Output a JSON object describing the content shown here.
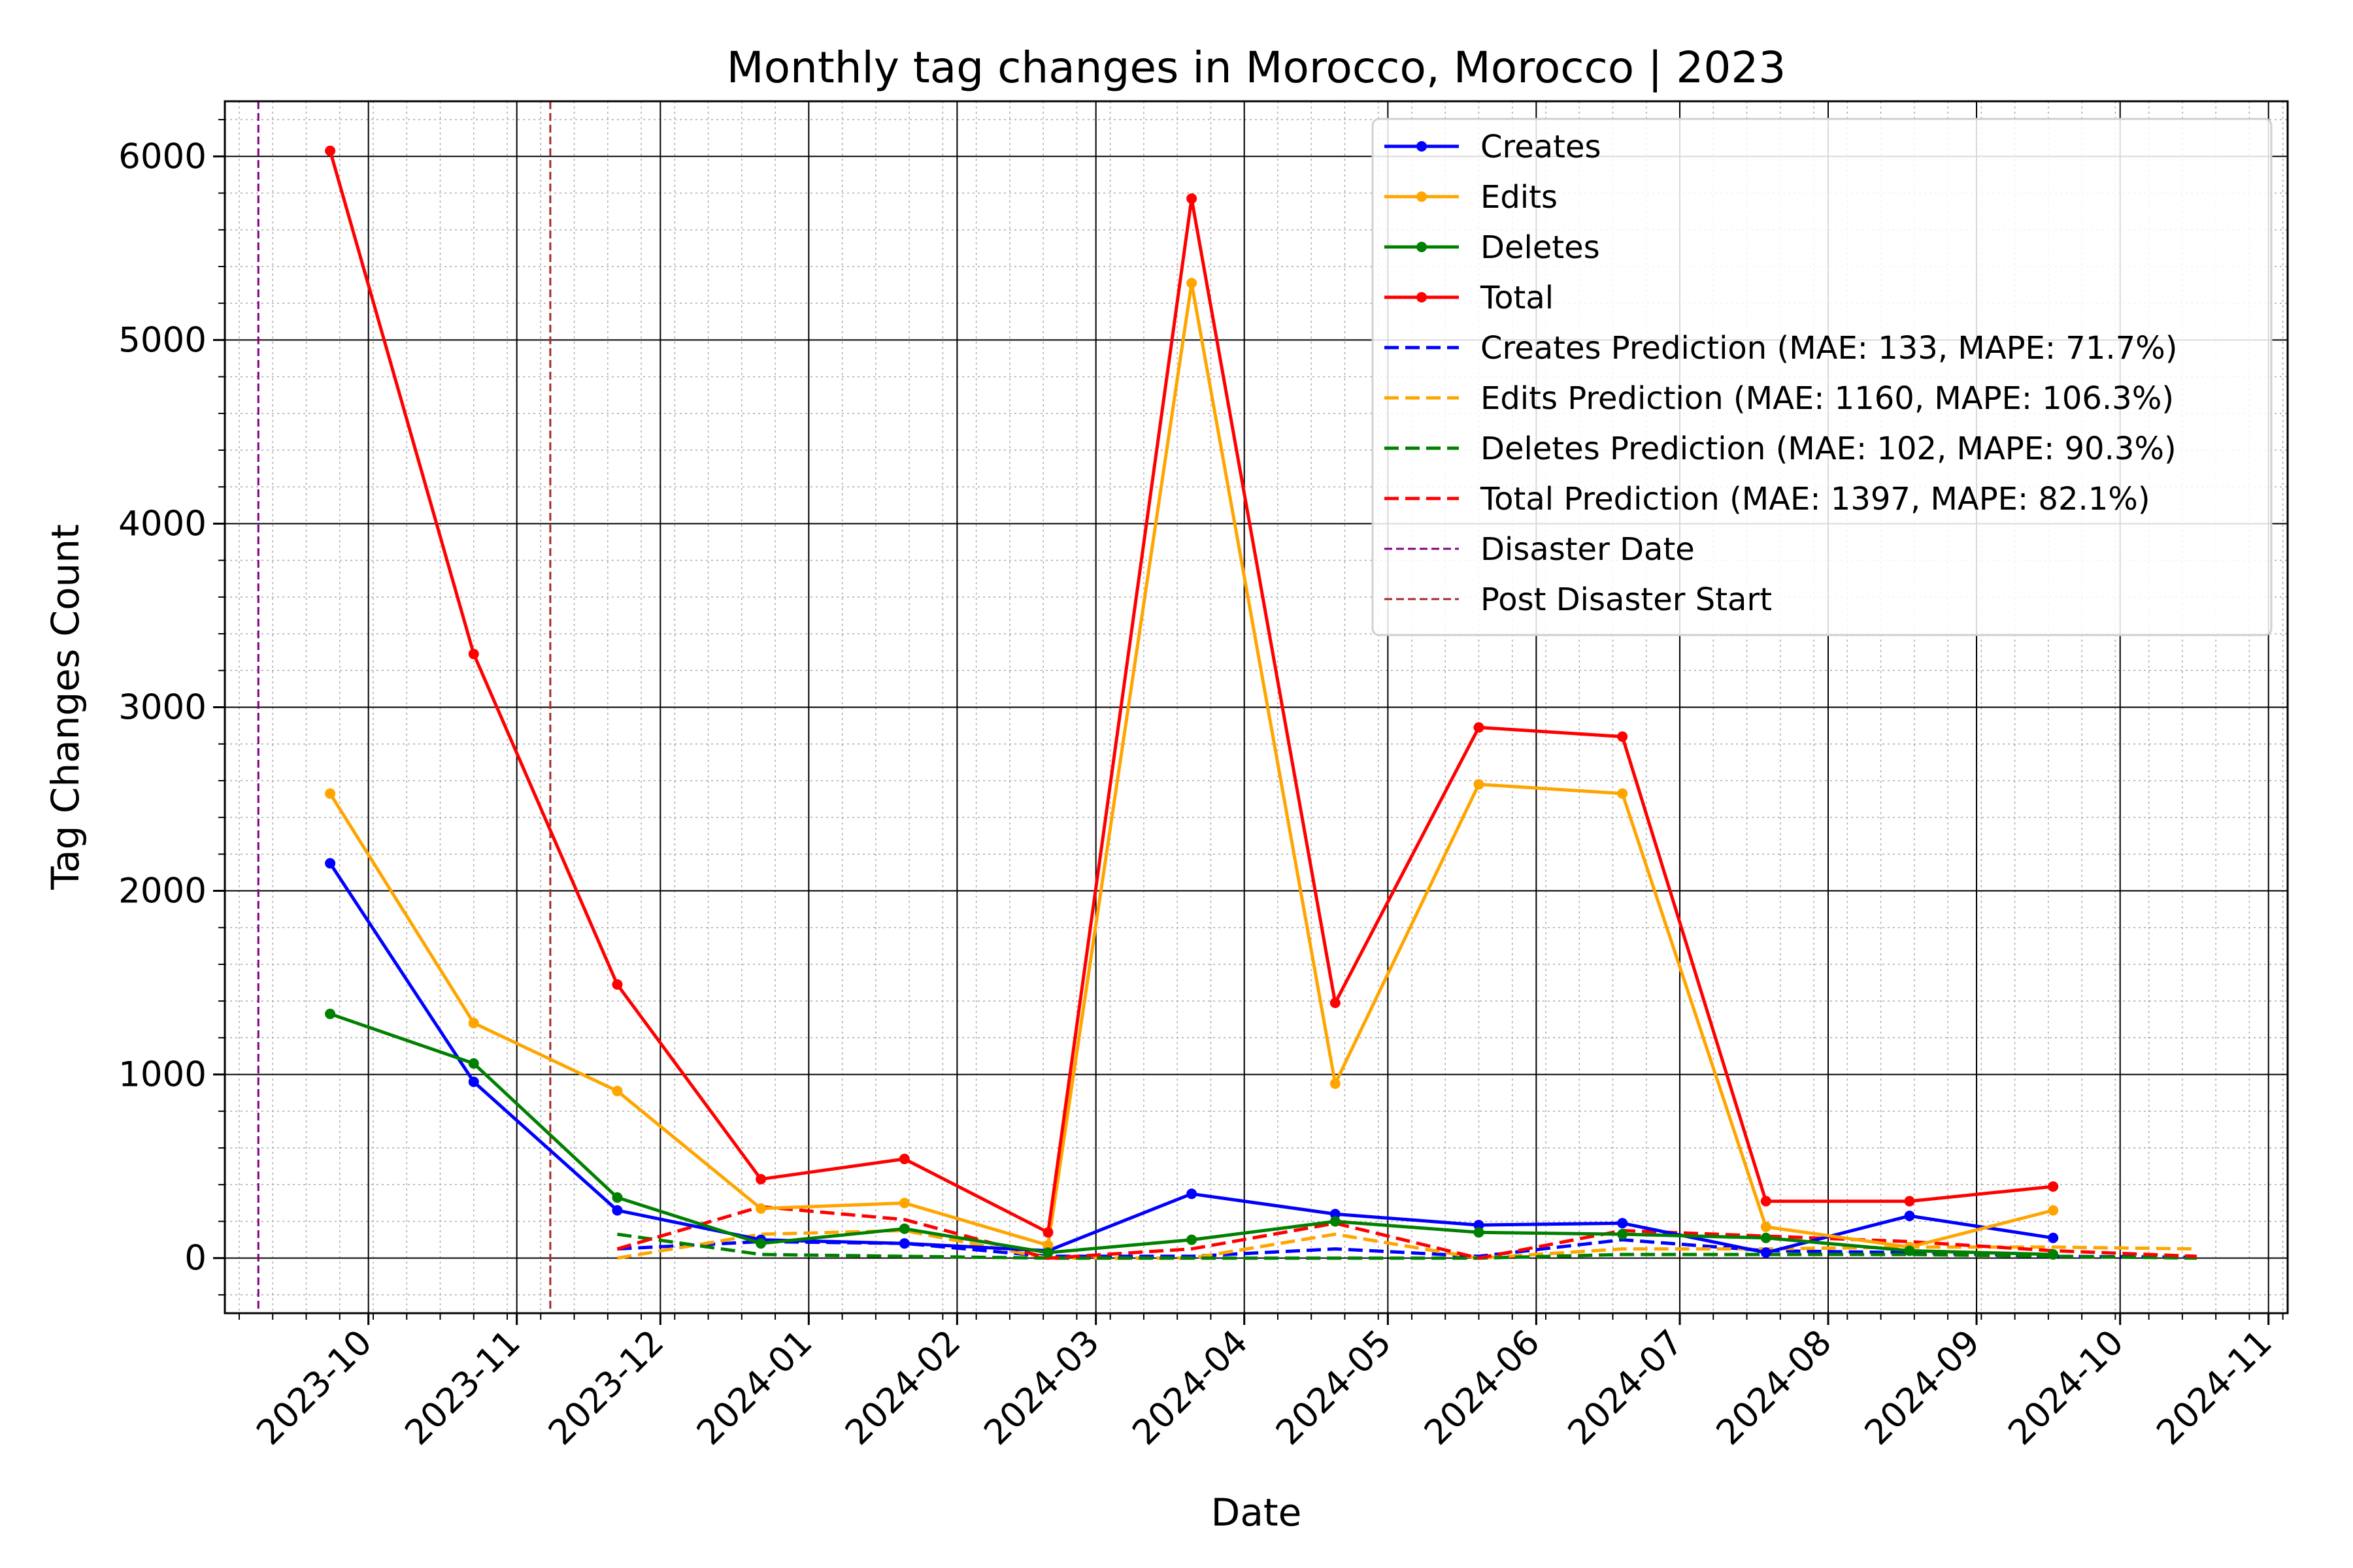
{
  "chart_data": {
    "type": "line",
    "title": "Monthly tag changes in Morocco, Morocco | 2023",
    "xlabel": "Date",
    "ylabel": "Tag Changes Count",
    "xlim": [
      "2023-09-01",
      "2024-11-05"
    ],
    "ylim": [
      -300,
      6300
    ],
    "yticks": [
      0,
      1000,
      2000,
      3000,
      4000,
      5000,
      6000
    ],
    "xticks": [
      "2023-10",
      "2023-11",
      "2023-12",
      "2024-01",
      "2024-02",
      "2024-03",
      "2024-04",
      "2024-05",
      "2024-06",
      "2024-07",
      "2024-08",
      "2024-09",
      "2024-10",
      "2024-11"
    ],
    "grid": true,
    "legend_position": "top-right",
    "series": [
      {
        "name": "Creates",
        "color": "#0000ff",
        "style": "solid-marker",
        "x": [
          "2023-09-23",
          "2023-10-23",
          "2023-11-22",
          "2023-12-22",
          "2024-01-21",
          "2024-02-20",
          "2024-03-21",
          "2024-04-20",
          "2024-05-20",
          "2024-06-19",
          "2024-07-19",
          "2024-08-18",
          "2024-09-17"
        ],
        "values": [
          2150,
          960,
          260,
          100,
          80,
          40,
          350,
          240,
          180,
          190,
          30,
          230,
          110
        ]
      },
      {
        "name": "Edits",
        "color": "#ffa500",
        "style": "solid-marker",
        "x": [
          "2023-09-23",
          "2023-10-23",
          "2023-11-22",
          "2023-12-22",
          "2024-01-21",
          "2024-02-20",
          "2024-03-21",
          "2024-04-20",
          "2024-05-20",
          "2024-06-19",
          "2024-07-19",
          "2024-08-18",
          "2024-09-17"
        ],
        "values": [
          2530,
          1280,
          910,
          270,
          300,
          70,
          5310,
          950,
          2580,
          2530,
          170,
          60,
          260
        ]
      },
      {
        "name": "Deletes",
        "color": "#008000",
        "style": "solid-marker",
        "x": [
          "2023-09-23",
          "2023-10-23",
          "2023-11-22",
          "2023-12-22",
          "2024-01-21",
          "2024-02-20",
          "2024-03-21",
          "2024-04-20",
          "2024-05-20",
          "2024-06-19",
          "2024-07-19",
          "2024-08-18",
          "2024-09-17"
        ],
        "values": [
          1330,
          1060,
          330,
          80,
          160,
          30,
          100,
          200,
          140,
          130,
          110,
          40,
          20
        ]
      },
      {
        "name": "Total",
        "color": "#ff0000",
        "style": "solid-marker",
        "x": [
          "2023-09-23",
          "2023-10-23",
          "2023-11-22",
          "2023-12-22",
          "2024-01-21",
          "2024-02-20",
          "2024-03-21",
          "2024-04-20",
          "2024-05-20",
          "2024-06-19",
          "2024-07-19",
          "2024-08-18",
          "2024-09-17"
        ],
        "values": [
          6030,
          3290,
          1490,
          430,
          540,
          140,
          5770,
          1390,
          2890,
          2840,
          310,
          310,
          390
        ]
      },
      {
        "name": "Creates Prediction (MAE: 133, MAPE: 71.7%)",
        "color": "#0000ff",
        "style": "dashed",
        "x": [
          "2023-11-22",
          "2023-12-22",
          "2024-01-21",
          "2024-02-20",
          "2024-03-21",
          "2024-04-20",
          "2024-05-20",
          "2024-06-19",
          "2024-07-19",
          "2024-08-18",
          "2024-09-17",
          "2024-10-17"
        ],
        "values": [
          50,
          90,
          80,
          10,
          10,
          50,
          10,
          100,
          40,
          30,
          10,
          5
        ]
      },
      {
        "name": "Edits Prediction (MAE: 1160, MAPE: 106.3%)",
        "color": "#ffa500",
        "style": "dashed",
        "x": [
          "2023-11-22",
          "2023-12-22",
          "2024-01-21",
          "2024-02-20",
          "2024-03-21",
          "2024-04-20",
          "2024-05-20",
          "2024-06-19",
          "2024-07-19",
          "2024-08-18",
          "2024-09-17",
          "2024-10-17"
        ],
        "values": [
          0,
          130,
          150,
          0,
          0,
          130,
          0,
          50,
          50,
          60,
          60,
          50
        ]
      },
      {
        "name": "Deletes Prediction (MAE: 102, MAPE: 90.3%)",
        "color": "#008000",
        "style": "dashed",
        "x": [
          "2023-11-22",
          "2023-12-22",
          "2024-01-21",
          "2024-02-20",
          "2024-03-21",
          "2024-04-20",
          "2024-05-20",
          "2024-06-19",
          "2024-07-19",
          "2024-08-18",
          "2024-09-17",
          "2024-10-17"
        ],
        "values": [
          130,
          20,
          10,
          0,
          0,
          0,
          0,
          20,
          20,
          20,
          10,
          0
        ]
      },
      {
        "name": "Total Prediction (MAE: 1397, MAPE: 82.1%)",
        "color": "#ff0000",
        "style": "dashed",
        "x": [
          "2023-11-22",
          "2023-12-22",
          "2024-01-21",
          "2024-02-20",
          "2024-03-21",
          "2024-04-20",
          "2024-05-20",
          "2024-06-19",
          "2024-07-19",
          "2024-08-18",
          "2024-09-17",
          "2024-10-17"
        ],
        "values": [
          50,
          280,
          210,
          0,
          50,
          190,
          0,
          150,
          120,
          90,
          40,
          10
        ]
      }
    ],
    "vlines": [
      {
        "name": "Disaster Date",
        "date": "2023-09-08",
        "color": "#800080"
      },
      {
        "name": "Post Disaster Start",
        "date": "2023-11-08",
        "color": "#a52a2a"
      }
    ]
  }
}
